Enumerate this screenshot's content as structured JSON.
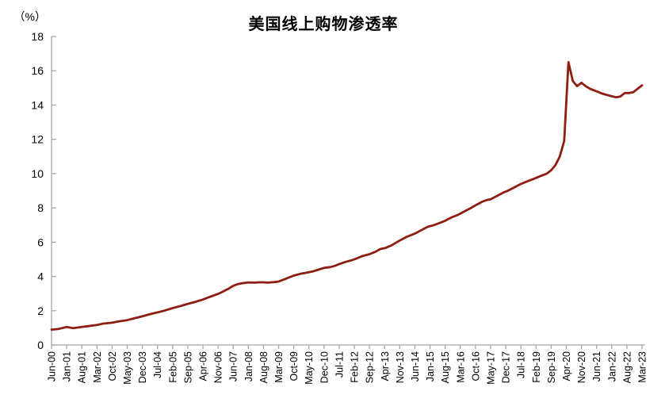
{
  "chart": {
    "title": "美国线上购物渗透率",
    "y_unit_label": "（%）"
  },
  "chart_data": {
    "type": "line",
    "title": "美国线上购物渗透率",
    "ylabel": "（%）",
    "ylim": [
      0,
      18
    ],
    "y_ticks": [
      0,
      2,
      4,
      6,
      8,
      10,
      12,
      14,
      16,
      18
    ],
    "grid": false,
    "legend_position": "none",
    "line_color": "#8E1D12",
    "axis_color": "#A6A6A6",
    "x_tick_interval_months": 7,
    "x_tick_labels": [
      "Jun-00",
      "Jan-01",
      "Aug-01",
      "Mar-02",
      "Oct-02",
      "May-03",
      "Dec-03",
      "Jul-04",
      "Feb-05",
      "Sep-05",
      "Apr-06",
      "Nov-06",
      "Jun-07",
      "Jan-08",
      "Aug-08",
      "Mar-09",
      "Oct-09",
      "May-10",
      "Dec-10",
      "Jul-11",
      "Feb-12",
      "Sep-12",
      "Apr-13",
      "Nov-13",
      "Jun-14",
      "Jan-15",
      "Aug-15",
      "Mar-16",
      "Oct-16",
      "May-17",
      "Dec-17",
      "Jul-18",
      "Feb-19",
      "Sep-19",
      "Apr-20",
      "Nov-20",
      "Jun-21",
      "Jan-22",
      "Aug-22",
      "Mar-23"
    ],
    "series": [
      {
        "name": "美国线上购物渗透率",
        "x_unit": "months since Jun-2000",
        "points": [
          [
            0,
            0.9
          ],
          [
            3,
            0.93
          ],
          [
            7,
            1.05
          ],
          [
            10,
            0.98
          ],
          [
            14,
            1.05
          ],
          [
            17,
            1.1
          ],
          [
            21,
            1.17
          ],
          [
            24,
            1.25
          ],
          [
            28,
            1.3
          ],
          [
            31,
            1.38
          ],
          [
            35,
            1.45
          ],
          [
            38,
            1.55
          ],
          [
            42,
            1.67
          ],
          [
            45,
            1.78
          ],
          [
            49,
            1.9
          ],
          [
            52,
            2.0
          ],
          [
            56,
            2.15
          ],
          [
            59,
            2.25
          ],
          [
            63,
            2.4
          ],
          [
            66,
            2.5
          ],
          [
            70,
            2.65
          ],
          [
            73,
            2.8
          ],
          [
            77,
            2.98
          ],
          [
            79,
            3.1
          ],
          [
            82,
            3.3
          ],
          [
            84,
            3.45
          ],
          [
            86,
            3.55
          ],
          [
            88,
            3.6
          ],
          [
            91,
            3.65
          ],
          [
            94,
            3.64
          ],
          [
            97,
            3.66
          ],
          [
            100,
            3.64
          ],
          [
            103,
            3.67
          ],
          [
            105,
            3.7
          ],
          [
            108,
            3.85
          ],
          [
            112,
            4.05
          ],
          [
            115,
            4.15
          ],
          [
            118,
            4.22
          ],
          [
            121,
            4.3
          ],
          [
            124,
            4.42
          ],
          [
            126,
            4.5
          ],
          [
            129,
            4.55
          ],
          [
            131,
            4.62
          ],
          [
            133,
            4.72
          ],
          [
            136,
            4.85
          ],
          [
            139,
            4.95
          ],
          [
            141,
            5.05
          ],
          [
            144,
            5.2
          ],
          [
            147,
            5.3
          ],
          [
            150,
            5.45
          ],
          [
            152,
            5.6
          ],
          [
            154,
            5.65
          ],
          [
            157,
            5.8
          ],
          [
            159,
            5.95
          ],
          [
            161,
            6.1
          ],
          [
            164,
            6.3
          ],
          [
            166,
            6.4
          ],
          [
            168,
            6.5
          ],
          [
            171,
            6.7
          ],
          [
            174,
            6.9
          ],
          [
            177,
            7.0
          ],
          [
            180,
            7.15
          ],
          [
            182,
            7.25
          ],
          [
            185,
            7.45
          ],
          [
            188,
            7.6
          ],
          [
            191,
            7.8
          ],
          [
            194,
            8.0
          ],
          [
            196,
            8.15
          ],
          [
            199,
            8.35
          ],
          [
            201,
            8.45
          ],
          [
            203,
            8.5
          ],
          [
            206,
            8.7
          ],
          [
            209,
            8.9
          ],
          [
            211,
            9.0
          ],
          [
            214,
            9.2
          ],
          [
            217,
            9.4
          ],
          [
            220,
            9.55
          ],
          [
            223,
            9.7
          ],
          [
            226,
            9.85
          ],
          [
            229,
            10.0
          ],
          [
            231,
            10.2
          ],
          [
            233,
            10.5
          ],
          [
            235,
            11.0
          ],
          [
            237,
            11.9
          ],
          [
            239,
            16.5
          ],
          [
            241,
            15.4
          ],
          [
            243,
            15.1
          ],
          [
            245,
            15.3
          ],
          [
            247,
            15.1
          ],
          [
            249,
            14.95
          ],
          [
            252,
            14.8
          ],
          [
            255,
            14.65
          ],
          [
            258,
            14.55
          ],
          [
            261,
            14.45
          ],
          [
            263,
            14.5
          ],
          [
            265,
            14.7
          ],
          [
            267,
            14.7
          ],
          [
            269,
            14.75
          ],
          [
            271,
            14.95
          ],
          [
            273,
            15.15
          ]
        ]
      }
    ]
  }
}
